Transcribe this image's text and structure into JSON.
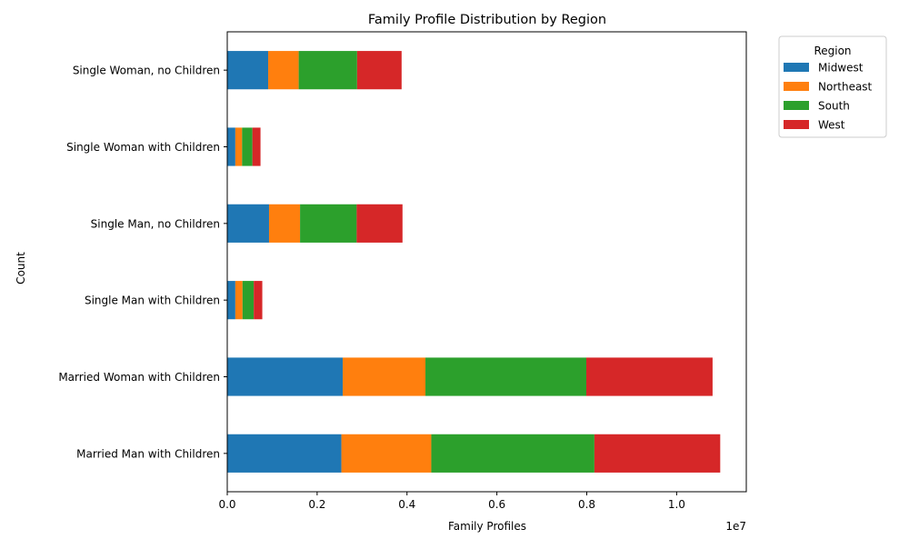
{
  "chart_data": {
    "type": "bar",
    "orientation": "horizontal",
    "stacked": true,
    "title": "Family Profile Distribution by Region",
    "xlabel": "Family Profiles",
    "ylabel": "Count",
    "x_offset_label": "1e7",
    "xlim": [
      0,
      1.155
    ],
    "xticks": [
      0.0,
      0.2,
      0.4,
      0.6,
      0.8,
      1.0
    ],
    "xtick_labels": [
      "0.0",
      "0.2",
      "0.4",
      "0.6",
      "0.8",
      "1.0"
    ],
    "grid": false,
    "legend_title": "Region",
    "legend_position": "outside-top-right",
    "categories": [
      "Married Man with Children",
      "Married Woman with Children",
      "Single Man with Children",
      "Single Man, no Children",
      "Single Woman with Children",
      "Single Woman, no Children"
    ],
    "series": [
      {
        "name": "Midwest",
        "color": "#1f77b4",
        "values": [
          0.254,
          0.257,
          0.018,
          0.093,
          0.018,
          0.091
        ]
      },
      {
        "name": "Northeast",
        "color": "#ff7f0e",
        "values": [
          0.2,
          0.184,
          0.016,
          0.069,
          0.015,
          0.068
        ]
      },
      {
        "name": "South",
        "color": "#2ca02c",
        "values": [
          0.363,
          0.358,
          0.025,
          0.126,
          0.023,
          0.13
        ]
      },
      {
        "name": "West",
        "color": "#d62728",
        "values": [
          0.28,
          0.281,
          0.019,
          0.102,
          0.018,
          0.099
        ]
      }
    ]
  }
}
